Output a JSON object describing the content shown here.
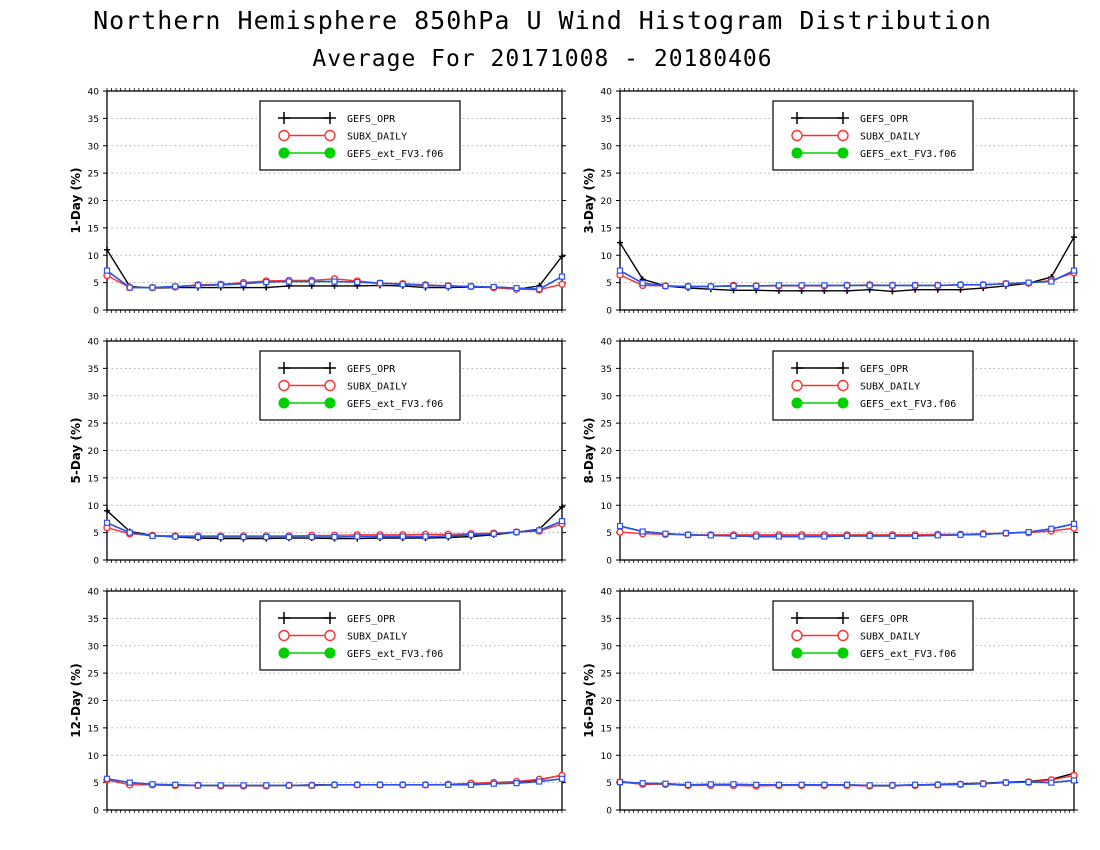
{
  "header": {
    "title": "Northern Hemisphere 850hPa U Wind Histogram Distribution",
    "subtitle": "Average For 20171008 - 20180406"
  },
  "colors": {
    "GEFS_OPR": "#000000",
    "SUBX_DAILY": "#ff3030",
    "GEFS_ext_FV3.f06": "#00d000",
    "overlay": "#3050f0",
    "grid": "#9a9a9a"
  },
  "chart_data": [
    {
      "type": "line",
      "ylabel": "1-Day (%)",
      "ylim": [
        0,
        40
      ],
      "yticks": [
        "0",
        "5",
        "10",
        "15",
        "20",
        "25",
        "30",
        "35",
        "40"
      ],
      "legend": [
        "GEFS_OPR",
        "SUBX_DAILY",
        "GEFS_ext_FV3.f06"
      ],
      "grid": true,
      "series": [
        {
          "name": "GEFS_OPR",
          "values": [
            11.0,
            4.3,
            4.0,
            4.1,
            4.1,
            4.1,
            4.1,
            4.1,
            4.4,
            4.4,
            4.4,
            4.4,
            4.5,
            4.4,
            4.1,
            4.1,
            4.2,
            4.1,
            3.8,
            4.4,
            9.8
          ]
        },
        {
          "name": "SUBX_DAILY",
          "values": [
            6.3,
            4.1,
            4.1,
            4.2,
            4.6,
            4.7,
            5.0,
            5.3,
            5.4,
            5.4,
            5.7,
            5.3,
            4.9,
            4.8,
            4.6,
            4.4,
            4.3,
            4.1,
            3.8,
            3.7,
            4.7
          ]
        },
        {
          "name": "GEFS_ext_FV3.f06",
          "values": [
            7.2,
            4.1,
            4.1,
            4.3,
            4.5,
            4.6,
            4.8,
            5.1,
            5.2,
            5.2,
            5.2,
            5.1,
            4.9,
            4.7,
            4.5,
            4.4,
            4.3,
            4.2,
            4.0,
            3.8,
            6.1
          ]
        }
      ]
    },
    {
      "type": "line",
      "ylabel": "3-Day (%)",
      "ylim": [
        0,
        40
      ],
      "yticks": [
        "0",
        "5",
        "10",
        "15",
        "20",
        "25",
        "30",
        "35",
        "40"
      ],
      "legend": [
        "GEFS_OPR",
        "SUBX_DAILY",
        "GEFS_ext_FV3.f06"
      ],
      "grid": true,
      "series": [
        {
          "name": "GEFS_OPR",
          "values": [
            12.3,
            5.6,
            4.4,
            4.0,
            3.8,
            3.6,
            3.6,
            3.5,
            3.5,
            3.5,
            3.5,
            3.7,
            3.4,
            3.7,
            3.7,
            3.7,
            4.0,
            4.4,
            4.9,
            6.0,
            13.3
          ]
        },
        {
          "name": "SUBX_DAILY",
          "values": [
            6.4,
            4.5,
            4.4,
            4.3,
            4.3,
            4.5,
            4.4,
            4.4,
            4.4,
            4.4,
            4.5,
            4.6,
            4.5,
            4.5,
            4.5,
            4.6,
            4.6,
            4.8,
            4.9,
            5.4,
            6.8
          ]
        },
        {
          "name": "GEFS_ext_FV3.f06",
          "values": [
            7.2,
            4.9,
            4.4,
            4.3,
            4.3,
            4.4,
            4.4,
            4.5,
            4.5,
            4.5,
            4.5,
            4.5,
            4.5,
            4.5,
            4.5,
            4.6,
            4.6,
            4.8,
            5.0,
            5.2,
            7.2
          ]
        }
      ]
    },
    {
      "type": "line",
      "ylabel": "5-Day (%)",
      "ylim": [
        0,
        40
      ],
      "yticks": [
        "0",
        "5",
        "10",
        "15",
        "20",
        "25",
        "30",
        "35",
        "40"
      ],
      "legend": [
        "GEFS_OPR",
        "SUBX_DAILY",
        "GEFS_ext_FV3.f06"
      ],
      "grid": true,
      "series": [
        {
          "name": "GEFS_OPR",
          "values": [
            9.0,
            5.2,
            4.5,
            4.2,
            4.0,
            3.9,
            3.9,
            3.9,
            4.0,
            4.0,
            3.9,
            3.9,
            4.0,
            4.0,
            4.0,
            4.1,
            4.3,
            4.6,
            5.1,
            5.6,
            9.7
          ]
        },
        {
          "name": "SUBX_DAILY",
          "values": [
            5.9,
            4.8,
            4.5,
            4.4,
            4.4,
            4.4,
            4.4,
            4.4,
            4.4,
            4.5,
            4.5,
            4.6,
            4.6,
            4.6,
            4.7,
            4.7,
            4.8,
            4.9,
            5.1,
            5.3,
            6.6
          ]
        },
        {
          "name": "GEFS_ext_FV3.f06",
          "values": [
            6.8,
            5.0,
            4.4,
            4.3,
            4.2,
            4.2,
            4.2,
            4.2,
            4.2,
            4.2,
            4.2,
            4.3,
            4.3,
            4.3,
            4.3,
            4.4,
            4.6,
            4.8,
            5.1,
            5.4,
            7.1
          ]
        }
      ]
    },
    {
      "type": "line",
      "ylabel": "8-Day (%)",
      "ylim": [
        0,
        40
      ],
      "yticks": [
        "0",
        "5",
        "10",
        "15",
        "20",
        "25",
        "30",
        "35",
        "40"
      ],
      "legend": [
        "GEFS_OPR",
        "SUBX_DAILY",
        "GEFS_ext_FV3.f06"
      ],
      "grid": true,
      "series": [
        {
          "name": "GEFS_OPR",
          "values": [
            6.2,
            5.2,
            4.8,
            4.6,
            4.5,
            4.4,
            4.3,
            4.3,
            4.3,
            4.3,
            4.4,
            4.4,
            4.4,
            4.4,
            4.5,
            4.6,
            4.7,
            4.9,
            5.1,
            5.7,
            6.6
          ]
        },
        {
          "name": "SUBX_DAILY",
          "values": [
            5.1,
            4.8,
            4.7,
            4.6,
            4.6,
            4.6,
            4.6,
            4.6,
            4.6,
            4.6,
            4.6,
            4.6,
            4.6,
            4.6,
            4.7,
            4.7,
            4.8,
            4.9,
            5.0,
            5.3,
            5.8
          ]
        },
        {
          "name": "GEFS_ext_FV3.f06",
          "values": [
            6.2,
            5.2,
            4.8,
            4.6,
            4.5,
            4.4,
            4.3,
            4.3,
            4.3,
            4.3,
            4.4,
            4.4,
            4.4,
            4.4,
            4.5,
            4.6,
            4.7,
            4.9,
            5.1,
            5.7,
            6.6
          ]
        }
      ]
    },
    {
      "type": "line",
      "ylabel": "12-Day (%)",
      "ylim": [
        0,
        40
      ],
      "yticks": [
        "0",
        "5",
        "10",
        "15",
        "20",
        "25",
        "30",
        "35",
        "40"
      ],
      "legend": [
        "GEFS_OPR",
        "SUBX_DAILY",
        "GEFS_ext_FV3.f06"
      ],
      "grid": true,
      "series": [
        {
          "name": "GEFS_OPR",
          "values": [
            5.6,
            5.0,
            4.6,
            4.5,
            4.5,
            4.5,
            4.4,
            4.5,
            4.5,
            4.6,
            4.6,
            4.6,
            4.6,
            4.6,
            4.6,
            4.6,
            4.7,
            4.9,
            5.1,
            5.5,
            6.4
          ]
        },
        {
          "name": "SUBX_DAILY",
          "values": [
            5.5,
            4.6,
            4.6,
            4.5,
            4.5,
            4.4,
            4.4,
            4.4,
            4.5,
            4.5,
            4.6,
            4.6,
            4.6,
            4.6,
            4.6,
            4.7,
            4.9,
            5.0,
            5.2,
            5.6,
            6.3
          ]
        },
        {
          "name": "GEFS_ext_FV3.f06",
          "values": [
            5.7,
            5.0,
            4.7,
            4.6,
            4.5,
            4.5,
            4.5,
            4.5,
            4.5,
            4.5,
            4.6,
            4.6,
            4.6,
            4.6,
            4.6,
            4.6,
            4.6,
            4.8,
            4.9,
            5.2,
            5.7
          ]
        }
      ]
    },
    {
      "type": "line",
      "ylabel": "16-Day (%)",
      "ylim": [
        0,
        40
      ],
      "yticks": [
        "0",
        "5",
        "10",
        "15",
        "20",
        "25",
        "30",
        "35",
        "40"
      ],
      "legend": [
        "GEFS_OPR",
        "SUBX_DAILY",
        "GEFS_ext_FV3.f06"
      ],
      "grid": true,
      "series": [
        {
          "name": "GEFS_OPR",
          "values": [
            5.2,
            4.8,
            4.7,
            4.5,
            4.6,
            4.6,
            4.5,
            4.6,
            4.6,
            4.5,
            4.6,
            4.4,
            4.4,
            4.6,
            4.7,
            4.8,
            4.9,
            5.1,
            5.2,
            5.6,
            6.7
          ]
        },
        {
          "name": "SUBX_DAILY",
          "values": [
            5.1,
            4.7,
            4.7,
            4.5,
            4.5,
            4.5,
            4.4,
            4.5,
            4.5,
            4.5,
            4.5,
            4.4,
            4.5,
            4.5,
            4.6,
            4.7,
            4.8,
            5.0,
            5.1,
            5.5,
            6.3
          ]
        },
        {
          "name": "GEFS_ext_FV3.f06",
          "values": [
            5.1,
            4.9,
            4.8,
            4.6,
            4.7,
            4.7,
            4.6,
            4.6,
            4.6,
            4.6,
            4.6,
            4.5,
            4.5,
            4.6,
            4.6,
            4.7,
            4.8,
            5.0,
            5.1,
            5.0,
            5.4
          ]
        }
      ]
    }
  ]
}
